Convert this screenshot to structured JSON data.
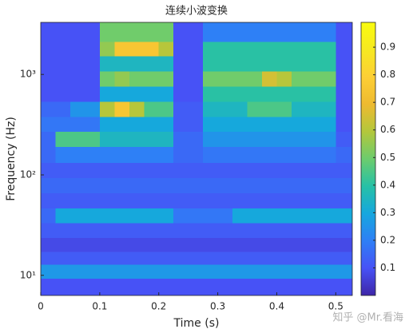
{
  "chart_data": {
    "type": "heatmap",
    "title": "连续小波变换",
    "xlabel": "Time (s)",
    "ylabel": "Frequency (Hz)",
    "watermark": "知乎 @Mr.看海",
    "colormap": "parula",
    "log_y": true,
    "xlim": [
      0,
      0.528
    ],
    "xticks": [
      0,
      0.1,
      0.2,
      0.3,
      0.4,
      0.5
    ],
    "ylim": [
      6.3,
      3300
    ],
    "yticks": [
      {
        "value": 10,
        "label": "10¹"
      },
      {
        "value": 100,
        "label": "10²"
      },
      {
        "value": 1000,
        "label": "10³"
      }
    ],
    "clim": [
      0,
      0.99
    ],
    "cticks": [
      0.1,
      0.2,
      0.3,
      0.4,
      0.5,
      0.6,
      0.7,
      0.8,
      0.9
    ],
    "x": [
      0.0125,
      0.0375,
      0.0625,
      0.0875,
      0.1125,
      0.1375,
      0.1625,
      0.1875,
      0.2125,
      0.2375,
      0.2625,
      0.2875,
      0.3125,
      0.3375,
      0.3625,
      0.3875,
      0.4125,
      0.4375,
      0.4625,
      0.4875,
      0.5125
    ],
    "y": [
      8,
      11,
      15,
      20,
      28,
      40,
      55,
      80,
      110,
      160,
      230,
      320,
      450,
      650,
      900,
      1300,
      1800,
      2500
    ],
    "values": [
      [
        0.1,
        0.1,
        0.1,
        0.1,
        0.1,
        0.1,
        0.1,
        0.1,
        0.1,
        0.1,
        0.1,
        0.1,
        0.1,
        0.1,
        0.1,
        0.1,
        0.1,
        0.1,
        0.1,
        0.1,
        0.1
      ],
      [
        0.26,
        0.26,
        0.26,
        0.26,
        0.26,
        0.26,
        0.26,
        0.26,
        0.26,
        0.26,
        0.26,
        0.26,
        0.26,
        0.26,
        0.26,
        0.26,
        0.26,
        0.26,
        0.26,
        0.26,
        0.26
      ],
      [
        0.12,
        0.12,
        0.12,
        0.12,
        0.12,
        0.12,
        0.12,
        0.12,
        0.12,
        0.12,
        0.12,
        0.12,
        0.12,
        0.12,
        0.12,
        0.12,
        0.12,
        0.12,
        0.12,
        0.12,
        0.12
      ],
      [
        0.08,
        0.08,
        0.08,
        0.08,
        0.08,
        0.08,
        0.08,
        0.08,
        0.08,
        0.08,
        0.08,
        0.08,
        0.08,
        0.08,
        0.08,
        0.08,
        0.08,
        0.08,
        0.08,
        0.08,
        0.08
      ],
      [
        0.12,
        0.12,
        0.12,
        0.12,
        0.12,
        0.12,
        0.12,
        0.12,
        0.12,
        0.12,
        0.12,
        0.12,
        0.12,
        0.12,
        0.12,
        0.12,
        0.12,
        0.12,
        0.12,
        0.12,
        0.12
      ],
      [
        0.15,
        0.3,
        0.3,
        0.3,
        0.3,
        0.3,
        0.3,
        0.3,
        0.3,
        0.18,
        0.18,
        0.18,
        0.18,
        0.3,
        0.3,
        0.3,
        0.3,
        0.3,
        0.3,
        0.3,
        0.3
      ],
      [
        0.12,
        0.12,
        0.12,
        0.12,
        0.12,
        0.12,
        0.12,
        0.12,
        0.12,
        0.12,
        0.12,
        0.12,
        0.12,
        0.12,
        0.12,
        0.12,
        0.12,
        0.12,
        0.12,
        0.12,
        0.12
      ],
      [
        0.15,
        0.15,
        0.15,
        0.15,
        0.15,
        0.15,
        0.15,
        0.15,
        0.15,
        0.15,
        0.15,
        0.15,
        0.15,
        0.15,
        0.15,
        0.15,
        0.15,
        0.15,
        0.15,
        0.15,
        0.15
      ],
      [
        0.12,
        0.12,
        0.12,
        0.12,
        0.12,
        0.12,
        0.12,
        0.12,
        0.12,
        0.12,
        0.12,
        0.12,
        0.12,
        0.12,
        0.12,
        0.12,
        0.12,
        0.12,
        0.12,
        0.12,
        0.12
      ],
      [
        0.15,
        0.2,
        0.2,
        0.2,
        0.2,
        0.2,
        0.2,
        0.2,
        0.2,
        0.15,
        0.15,
        0.18,
        0.18,
        0.18,
        0.18,
        0.18,
        0.18,
        0.18,
        0.18,
        0.18,
        0.15
      ],
      [
        0.15,
        0.45,
        0.45,
        0.45,
        0.35,
        0.35,
        0.35,
        0.35,
        0.35,
        0.15,
        0.15,
        0.25,
        0.25,
        0.25,
        0.25,
        0.25,
        0.25,
        0.25,
        0.25,
        0.25,
        0.12
      ],
      [
        0.18,
        0.18,
        0.18,
        0.18,
        0.3,
        0.3,
        0.3,
        0.3,
        0.3,
        0.12,
        0.12,
        0.3,
        0.3,
        0.3,
        0.3,
        0.3,
        0.3,
        0.3,
        0.3,
        0.3,
        0.1
      ],
      [
        0.15,
        0.15,
        0.25,
        0.25,
        0.6,
        0.75,
        0.6,
        0.45,
        0.45,
        0.12,
        0.12,
        0.35,
        0.35,
        0.35,
        0.45,
        0.45,
        0.45,
        0.35,
        0.35,
        0.35,
        0.1
      ],
      [
        0.1,
        0.1,
        0.1,
        0.1,
        0.3,
        0.3,
        0.3,
        0.3,
        0.3,
        0.1,
        0.1,
        0.4,
        0.4,
        0.4,
        0.4,
        0.4,
        0.4,
        0.4,
        0.4,
        0.4,
        0.1
      ],
      [
        0.1,
        0.1,
        0.1,
        0.1,
        0.5,
        0.55,
        0.5,
        0.5,
        0.5,
        0.1,
        0.1,
        0.5,
        0.5,
        0.5,
        0.5,
        0.65,
        0.6,
        0.5,
        0.5,
        0.5,
        0.1
      ],
      [
        0.1,
        0.1,
        0.1,
        0.1,
        0.35,
        0.35,
        0.35,
        0.35,
        0.35,
        0.1,
        0.1,
        0.4,
        0.4,
        0.4,
        0.4,
        0.4,
        0.4,
        0.4,
        0.4,
        0.4,
        0.1
      ],
      [
        0.1,
        0.1,
        0.1,
        0.1,
        0.55,
        0.75,
        0.75,
        0.75,
        0.6,
        0.1,
        0.1,
        0.4,
        0.4,
        0.4,
        0.4,
        0.4,
        0.4,
        0.4,
        0.4,
        0.4,
        0.1
      ],
      [
        0.1,
        0.1,
        0.1,
        0.1,
        0.5,
        0.5,
        0.5,
        0.5,
        0.5,
        0.1,
        0.1,
        0.2,
        0.2,
        0.2,
        0.2,
        0.2,
        0.2,
        0.2,
        0.2,
        0.2,
        0.1
      ]
    ]
  }
}
